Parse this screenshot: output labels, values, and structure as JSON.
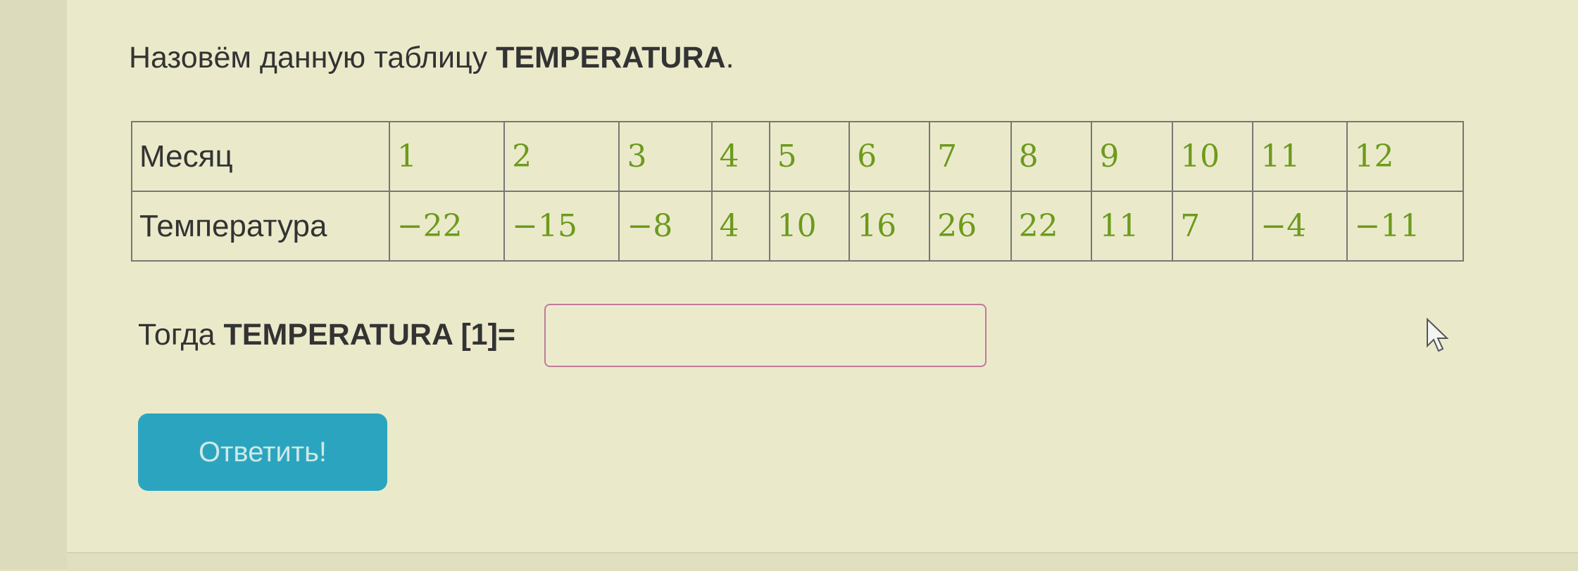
{
  "intro": {
    "text": "Назовём данную таблицу ",
    "name": "TEMPERATURA",
    "end": "."
  },
  "table": {
    "row_headers": [
      "Месяц",
      "Температура"
    ],
    "months": [
      "1",
      "2",
      "3",
      "4",
      "5",
      "6",
      "7",
      "8",
      "9",
      "10",
      "11",
      "12"
    ],
    "temperatures": [
      "−22",
      "−15",
      "−8",
      "4",
      "10",
      "16",
      "26",
      "22",
      "11",
      "7",
      "−4",
      "−11"
    ]
  },
  "question": {
    "prefix": "Тогда ",
    "expr": "TEMPERATURA [1]=",
    "answer_value": ""
  },
  "submit_label": "Ответить!",
  "colors": {
    "accent": "#2ba5bf",
    "values": "#6d9a1c",
    "input_border": "#c07a9a"
  }
}
